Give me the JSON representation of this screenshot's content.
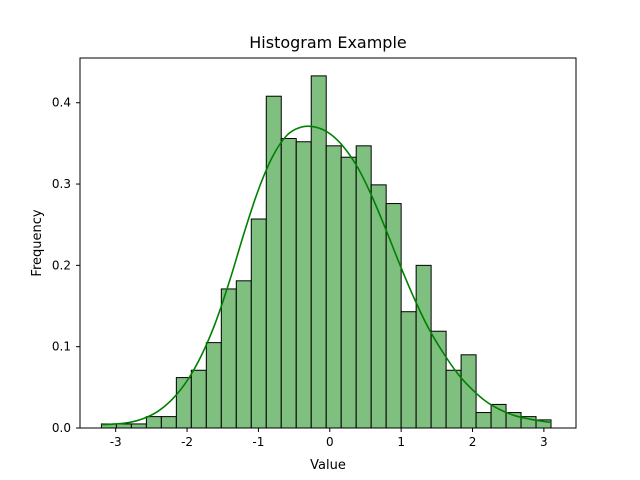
{
  "chart_data": {
    "type": "bar",
    "title": "Histogram Example",
    "xlabel": "Value",
    "ylabel": "Frequency",
    "xlim": [
      -3.5,
      3.45
    ],
    "ylim": [
      0,
      0.455
    ],
    "xticks": [
      -3,
      -2,
      -1,
      0,
      1,
      2,
      3
    ],
    "yticks": [
      0.0,
      0.1,
      0.2,
      0.3,
      0.4
    ],
    "ytick_labels": [
      "0.0",
      "0.1",
      "0.2",
      "0.3",
      "0.4"
    ],
    "grid": false,
    "legend": "none",
    "bar_color": "#7fbf7f",
    "bar_edge_color": "#000000",
    "kde_color": "#008000",
    "bins": {
      "edges": [
        -3.2,
        -2.99,
        -2.78,
        -2.57,
        -2.36,
        -2.15,
        -1.94,
        -1.73,
        -1.52,
        -1.31,
        -1.1,
        -0.89,
        -0.68,
        -0.47,
        -0.26,
        -0.05,
        0.16,
        0.37,
        0.58,
        0.79,
        1.0,
        1.21,
        1.42,
        1.63,
        1.84,
        2.05,
        2.26,
        2.47,
        2.68,
        2.89,
        3.1
      ],
      "values": [
        0.005,
        0.005,
        0.005,
        0.014,
        0.014,
        0.062,
        0.071,
        0.105,
        0.171,
        0.181,
        0.257,
        0.408,
        0.356,
        0.352,
        0.433,
        0.347,
        0.333,
        0.347,
        0.299,
        0.276,
        0.143,
        0.2,
        0.119,
        0.071,
        0.09,
        0.019,
        0.029,
        0.019,
        0.014,
        0.01
      ]
    },
    "kde": {
      "x": [
        -3.2,
        -3.0,
        -2.8,
        -2.6,
        -2.4,
        -2.2,
        -2.0,
        -1.8,
        -1.6,
        -1.4,
        -1.2,
        -1.0,
        -0.8,
        -0.6,
        -0.4,
        -0.2,
        0.0,
        0.2,
        0.4,
        0.6,
        0.8,
        1.0,
        1.2,
        1.4,
        1.6,
        1.8,
        2.0,
        2.2,
        2.4,
        2.6,
        2.8,
        3.0,
        3.1
      ],
      "y": [
        0.004,
        0.005,
        0.007,
        0.012,
        0.021,
        0.036,
        0.058,
        0.089,
        0.13,
        0.182,
        0.24,
        0.293,
        0.334,
        0.36,
        0.37,
        0.37,
        0.362,
        0.345,
        0.319,
        0.283,
        0.241,
        0.197,
        0.156,
        0.12,
        0.091,
        0.066,
        0.047,
        0.032,
        0.022,
        0.015,
        0.011,
        0.008,
        0.007
      ]
    }
  }
}
